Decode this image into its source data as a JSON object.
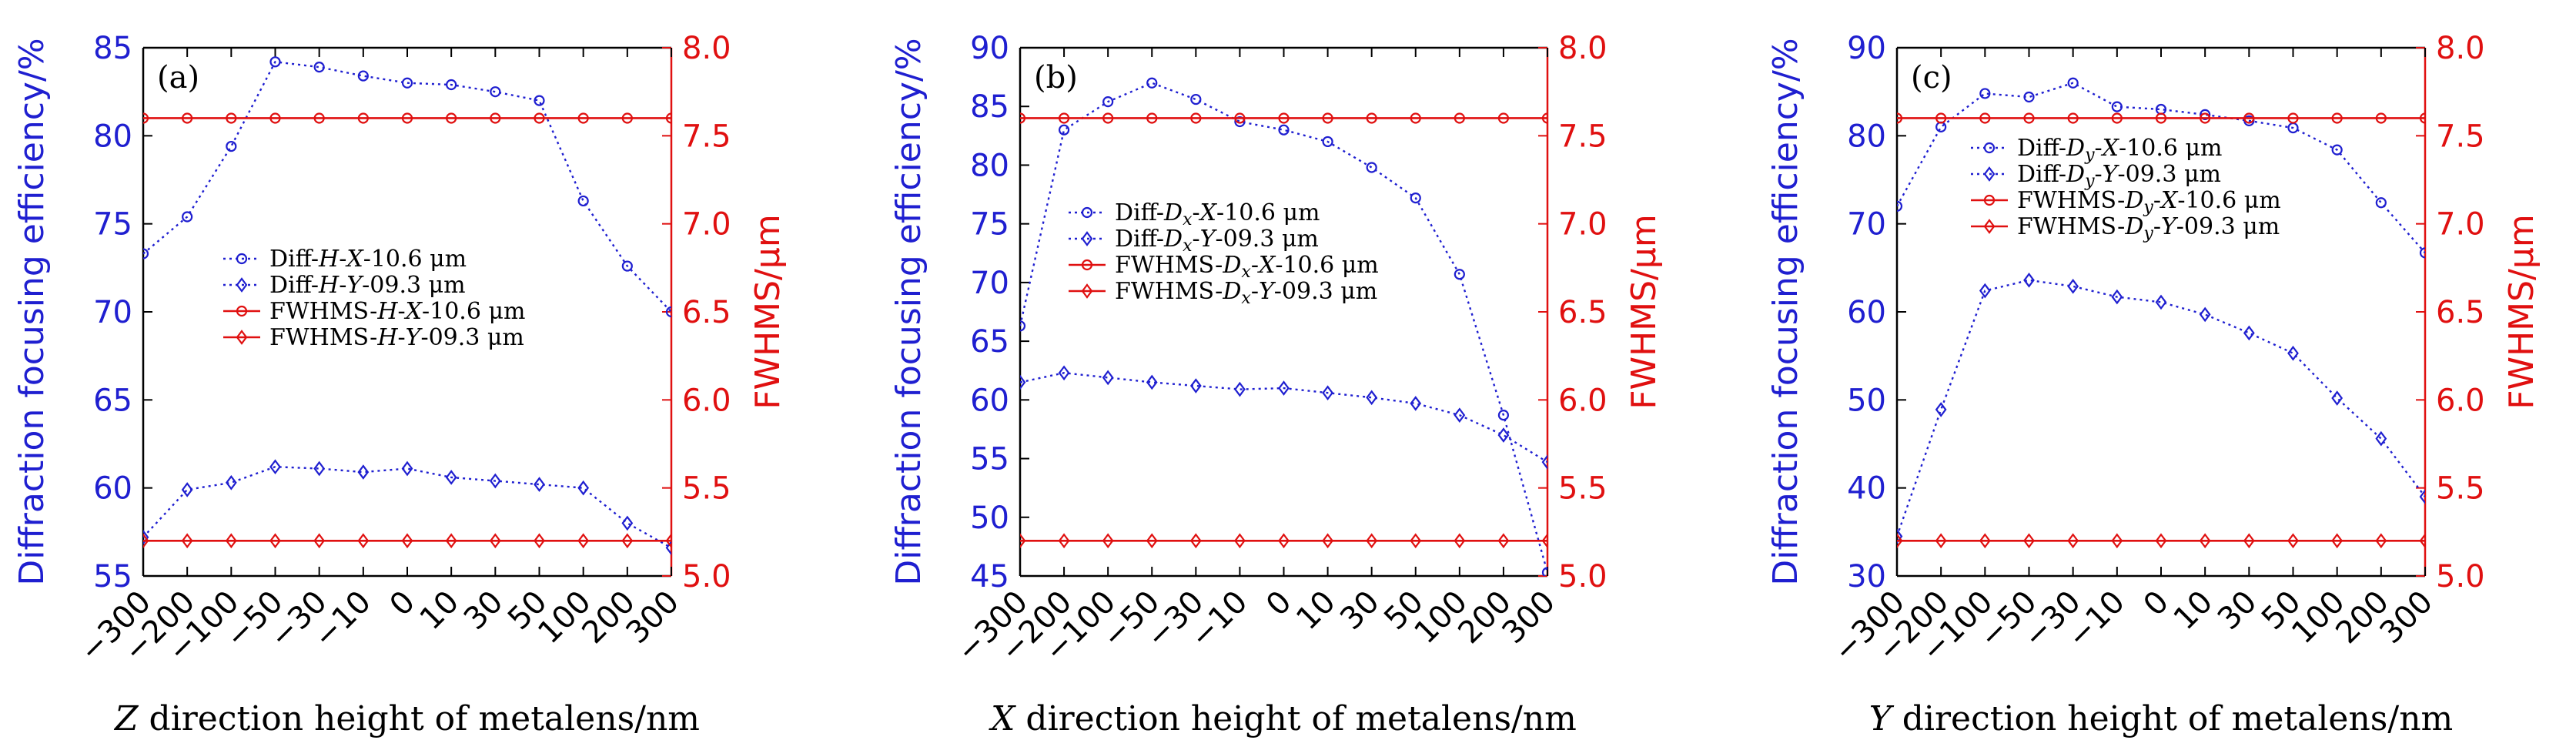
{
  "colors": {
    "blue": "#1f1fd0",
    "red": "#e01010",
    "frame": "#000000"
  },
  "x_tick_labels": [
    "−300",
    "−200",
    "−100",
    "−50",
    "−30",
    "−10",
    "0",
    "10",
    "30",
    "50",
    "100",
    "200",
    "300"
  ],
  "y_right_label": "FWHMS/μm",
  "y_left_label": "Diffraction focusing efficiency/%",
  "chart_data": [
    {
      "type": "line",
      "panel": "(a)",
      "xlabel_var": "Z",
      "xlabel_rest": " direction height of metalens/nm",
      "categories": [
        "−300",
        "−200",
        "−100",
        "−50",
        "−30",
        "−10",
        "0",
        "10",
        "30",
        "50",
        "100",
        "200",
        "300"
      ],
      "y_left": {
        "label": "Diffraction focusing efficiency/%",
        "lim": [
          55,
          85
        ],
        "ticks": [
          55,
          60,
          65,
          70,
          75,
          80,
          85
        ]
      },
      "y_right": {
        "label": "FWHMS/μm",
        "lim": [
          5.0,
          8.0
        ],
        "ticks": [
          "5.0",
          "5.5",
          "6.0",
          "6.5",
          "7.0",
          "7.5",
          "8.0"
        ]
      },
      "legend": [
        "Diff-H-X-10.6 μm",
        "Diff-H-Y-09.3 μm",
        "FWHMS-H-X-10.6 μm",
        "FWHMS-H-Y-09.3 μm"
      ],
      "series": [
        {
          "name": "Diff-H-X-10.6 μm",
          "axis": "left",
          "values": [
            73.3,
            75.4,
            79.4,
            84.2,
            83.9,
            83.4,
            83.0,
            82.9,
            82.5,
            82.0,
            76.3,
            72.6,
            70.0
          ]
        },
        {
          "name": "Diff-H-Y-09.3 μm",
          "axis": "left",
          "values": [
            57.2,
            59.9,
            60.3,
            61.2,
            61.1,
            60.9,
            61.1,
            60.6,
            60.4,
            60.2,
            60.0,
            58.0,
            56.6
          ]
        },
        {
          "name": "FWHMS-H-X-10.6 μm",
          "axis": "right",
          "values": [
            7.6,
            7.6,
            7.6,
            7.6,
            7.6,
            7.6,
            7.6,
            7.6,
            7.6,
            7.6,
            7.6,
            7.6,
            7.6
          ]
        },
        {
          "name": "FWHMS-H-Y-09.3 μm",
          "axis": "right",
          "values": [
            5.2,
            5.2,
            5.2,
            5.2,
            5.2,
            5.2,
            5.2,
            5.2,
            5.2,
            5.2,
            5.2,
            5.2,
            5.2
          ]
        }
      ]
    },
    {
      "type": "line",
      "panel": "(b)",
      "xlabel_var": "X",
      "xlabel_rest": " direction height of metalens/nm",
      "categories": [
        "−300",
        "−200",
        "−100",
        "−50",
        "−30",
        "−10",
        "0",
        "10",
        "30",
        "50",
        "100",
        "200",
        "300"
      ],
      "y_left": {
        "label": "Diffraction focusing efficiency/%",
        "lim": [
          45,
          90
        ],
        "ticks": [
          45,
          50,
          55,
          60,
          65,
          70,
          75,
          80,
          85,
          90
        ]
      },
      "y_right": {
        "label": "FWHMS/μm",
        "lim": [
          5.0,
          8.0
        ],
        "ticks": [
          "5.0",
          "5.5",
          "6.0",
          "6.5",
          "7.0",
          "7.5",
          "8.0"
        ]
      },
      "legend": [
        "Diff-Dx-X-10.6 μm",
        "Diff-Dx-Y-09.3 μm",
        "FWHMS-Dx-X-10.6 μm",
        "FWHMS-Dx-Y-09.3 μm"
      ],
      "series": [
        {
          "name": "Diff-Dx-X-10.6 μm",
          "axis": "left",
          "values": [
            66.3,
            83.0,
            85.4,
            87.0,
            85.6,
            83.7,
            83.0,
            82.0,
            79.8,
            77.2,
            70.7,
            58.7,
            45.3
          ]
        },
        {
          "name": "Diff-Dx-Y-09.3 μm",
          "axis": "left",
          "values": [
            61.5,
            62.3,
            61.9,
            61.5,
            61.2,
            60.9,
            61.0,
            60.6,
            60.2,
            59.7,
            58.7,
            57.0,
            54.7
          ]
        },
        {
          "name": "FWHMS-Dx-X-10.6 μm",
          "axis": "right",
          "values": [
            7.6,
            7.6,
            7.6,
            7.6,
            7.6,
            7.6,
            7.6,
            7.6,
            7.6,
            7.6,
            7.6,
            7.6,
            7.6
          ]
        },
        {
          "name": "FWHMS-Dx-Y-09.3 μm",
          "axis": "right",
          "values": [
            5.2,
            5.2,
            5.2,
            5.2,
            5.2,
            5.2,
            5.2,
            5.2,
            5.2,
            5.2,
            5.2,
            5.2,
            5.2
          ]
        }
      ]
    },
    {
      "type": "line",
      "panel": "(c)",
      "xlabel_var": "Y",
      "xlabel_rest": " direction height of metalens/nm",
      "categories": [
        "−300",
        "−200",
        "−100",
        "−50",
        "−30",
        "−10",
        "0",
        "10",
        "30",
        "50",
        "100",
        "200",
        "300"
      ],
      "y_left": {
        "label": "Diffraction focusing efficiency/%",
        "lim": [
          30,
          90
        ],
        "ticks": [
          30,
          40,
          50,
          60,
          70,
          80,
          90
        ]
      },
      "y_right": {
        "label": "FWHMS/μm",
        "lim": [
          5.0,
          8.0
        ],
        "ticks": [
          "5.0",
          "5.5",
          "6.0",
          "6.5",
          "7.0",
          "7.5",
          "8.0"
        ]
      },
      "legend": [
        "Diff-Dy-X-10.6 μm",
        "Diff-Dy-Y-09.3 μm",
        "FWHMS-Dy-X-10.6 μm",
        "FWHMS-Dy-Y-09.3 μm"
      ],
      "series": [
        {
          "name": "Diff-Dy-X-10.6 μm",
          "axis": "left",
          "values": [
            72.0,
            81.0,
            84.8,
            84.4,
            86.0,
            83.3,
            83.0,
            82.4,
            81.7,
            80.9,
            78.4,
            72.4,
            66.7
          ]
        },
        {
          "name": "Diff-Dy-Y-09.3 μm",
          "axis": "left",
          "values": [
            34.5,
            48.9,
            62.4,
            63.6,
            62.9,
            61.7,
            61.1,
            59.7,
            57.6,
            55.3,
            50.2,
            45.6,
            39.0
          ]
        },
        {
          "name": "FWHMS-Dy-X-10.6 μm",
          "axis": "right",
          "values": [
            7.6,
            7.6,
            7.6,
            7.6,
            7.6,
            7.6,
            7.6,
            7.6,
            7.6,
            7.6,
            7.6,
            7.6,
            7.6
          ]
        },
        {
          "name": "FWHMS-Dy-Y-09.3 μm",
          "axis": "right",
          "values": [
            5.2,
            5.2,
            5.2,
            5.2,
            5.2,
            5.2,
            5.2,
            5.2,
            5.2,
            5.2,
            5.2,
            5.2,
            5.2
          ]
        }
      ]
    }
  ]
}
